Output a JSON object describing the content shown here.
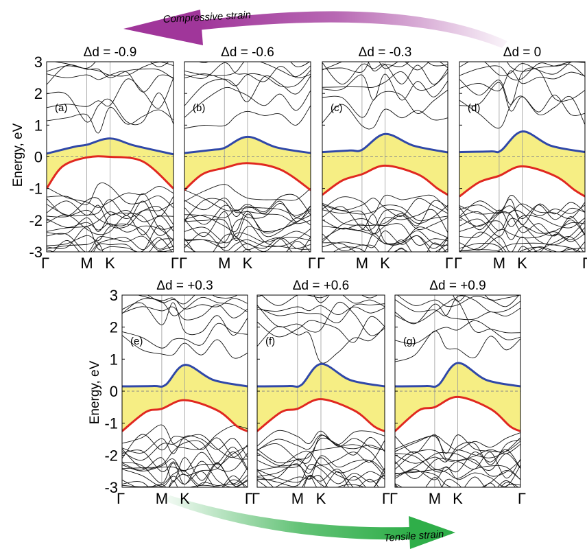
{
  "figure": {
    "arrows": {
      "top_label": "Compressive strain",
      "bottom_label": "Tensile strain",
      "top_color": "#a0369a",
      "bottom_color": "#2fae49"
    },
    "colors": {
      "gap_fill": "#f6ee84",
      "conduction_edge": "#3048a8",
      "valence_edge": "#e02820",
      "bands": "#111111",
      "fermi_line": "#888888"
    }
  },
  "chart_data": [
    {
      "type": "line",
      "panel": "(a)",
      "title": "Δd = -0.9",
      "ylabel": "Energy, eV",
      "ylim": [
        -3,
        3
      ],
      "yticks": [
        3,
        2,
        1,
        0,
        -1,
        -2,
        -3
      ],
      "xticks": [
        "Γ",
        "M",
        "K",
        "Γ"
      ],
      "k_positions": [
        0,
        1,
        1.58,
        3.16
      ],
      "conduction_edge": [
        [
          0,
          0.1
        ],
        [
          0.7,
          0.32
        ],
        [
          1.0,
          0.38
        ],
        [
          1.58,
          0.58
        ],
        [
          2.2,
          0.35
        ],
        [
          3.16,
          0.08
        ]
      ],
      "valence_edge": [
        [
          0,
          -1.0
        ],
        [
          0.4,
          -0.3
        ],
        [
          1.0,
          -0.02
        ],
        [
          1.58,
          0.0
        ],
        [
          2.4,
          -0.15
        ],
        [
          3.16,
          -1.0
        ]
      ]
    },
    {
      "type": "line",
      "panel": "(b)",
      "title": "Δd = -0.6",
      "ylabel": "",
      "ylim": [
        -3,
        3
      ],
      "yticks": [
        3,
        2,
        1,
        0,
        -1,
        -2,
        -3
      ],
      "xticks": [
        "Γ",
        "M",
        "K",
        "Γ"
      ],
      "k_positions": [
        0,
        1,
        1.58,
        3.16
      ],
      "conduction_edge": [
        [
          0,
          0.12
        ],
        [
          0.7,
          0.22
        ],
        [
          1.0,
          0.28
        ],
        [
          1.58,
          0.63
        ],
        [
          2.3,
          0.3
        ],
        [
          3.16,
          0.12
        ]
      ],
      "valence_edge": [
        [
          0,
          -1.05
        ],
        [
          0.45,
          -0.55
        ],
        [
          1.0,
          -0.35
        ],
        [
          1.58,
          -0.2
        ],
        [
          2.4,
          -0.4
        ],
        [
          3.16,
          -1.05
        ]
      ]
    },
    {
      "type": "line",
      "panel": "(c)",
      "title": "Δd = -0.3",
      "ylabel": "",
      "ylim": [
        -3,
        3
      ],
      "yticks": [
        3,
        2,
        1,
        0,
        -1,
        -2,
        -3
      ],
      "xticks": [
        "Γ",
        "M",
        "K",
        "Γ"
      ],
      "k_positions": [
        0,
        1,
        1.58,
        3.16
      ],
      "conduction_edge": [
        [
          0,
          0.15
        ],
        [
          0.7,
          0.2
        ],
        [
          1.0,
          0.22
        ],
        [
          1.58,
          0.72
        ],
        [
          2.3,
          0.35
        ],
        [
          3.16,
          0.14
        ]
      ],
      "valence_edge": [
        [
          0,
          -1.2
        ],
        [
          0.5,
          -0.75
        ],
        [
          1.0,
          -0.55
        ],
        [
          1.58,
          -0.28
        ],
        [
          2.4,
          -0.55
        ],
        [
          2.9,
          -1.0
        ],
        [
          3.16,
          -1.2
        ]
      ]
    },
    {
      "type": "line",
      "panel": "(d)",
      "title": "Δd = 0",
      "ylabel": "",
      "ylim": [
        -3,
        3
      ],
      "yticks": [
        3,
        2,
        1,
        0,
        -1,
        -2,
        -3
      ],
      "xticks": [
        "Γ",
        "M",
        "K",
        "Γ"
      ],
      "k_positions": [
        0,
        1,
        1.58,
        3.16
      ],
      "conduction_edge": [
        [
          0,
          0.15
        ],
        [
          0.8,
          0.17
        ],
        [
          1.05,
          0.2
        ],
        [
          1.58,
          0.8
        ],
        [
          2.3,
          0.35
        ],
        [
          3.16,
          0.15
        ]
      ],
      "valence_edge": [
        [
          0,
          -1.25
        ],
        [
          0.5,
          -0.8
        ],
        [
          1.0,
          -0.6
        ],
        [
          1.58,
          -0.3
        ],
        [
          2.4,
          -0.6
        ],
        [
          2.9,
          -1.05
        ],
        [
          3.16,
          -1.25
        ]
      ]
    },
    {
      "type": "line",
      "panel": "(e)",
      "title": "Δd = +0.3",
      "ylabel": "Energy, eV",
      "ylim": [
        -3,
        3
      ],
      "yticks": [
        3,
        2,
        1,
        0,
        -1,
        -2,
        -3
      ],
      "xticks": [
        "Γ",
        "M",
        "K",
        "Γ"
      ],
      "k_positions": [
        0,
        1,
        1.58,
        3.16
      ],
      "conduction_edge": [
        [
          0,
          0.15
        ],
        [
          0.8,
          0.16
        ],
        [
          1.1,
          0.2
        ],
        [
          1.58,
          0.82
        ],
        [
          2.3,
          0.35
        ],
        [
          3.16,
          0.15
        ]
      ],
      "valence_edge": [
        [
          0,
          -1.25
        ],
        [
          0.6,
          -0.65
        ],
        [
          1.0,
          -0.55
        ],
        [
          1.58,
          -0.28
        ],
        [
          2.4,
          -0.6
        ],
        [
          2.9,
          -1.1
        ],
        [
          3.16,
          -1.25
        ]
      ]
    },
    {
      "type": "line",
      "panel": "(f)",
      "title": "Δd = +0.6",
      "ylabel": "",
      "ylim": [
        -3,
        3
      ],
      "yticks": [
        3,
        2,
        1,
        0,
        -1,
        -2,
        -3
      ],
      "xticks": [
        "Γ",
        "M",
        "K",
        "Γ"
      ],
      "k_positions": [
        0,
        1,
        1.58,
        3.16
      ],
      "conduction_edge": [
        [
          0,
          0.15
        ],
        [
          0.8,
          0.16
        ],
        [
          1.1,
          0.2
        ],
        [
          1.58,
          0.85
        ],
        [
          2.3,
          0.35
        ],
        [
          3.16,
          0.15
        ]
      ],
      "valence_edge": [
        [
          0,
          -1.25
        ],
        [
          0.6,
          -0.65
        ],
        [
          1.0,
          -0.55
        ],
        [
          1.58,
          -0.25
        ],
        [
          2.4,
          -0.6
        ],
        [
          2.9,
          -1.1
        ],
        [
          3.16,
          -1.25
        ]
      ]
    },
    {
      "type": "line",
      "panel": "(g)",
      "title": "Δd = +0.9",
      "ylabel": "",
      "ylim": [
        -3,
        3
      ],
      "yticks": [
        3,
        2,
        1,
        0,
        -1,
        -2,
        -3
      ],
      "xticks": [
        "Γ",
        "M",
        "K",
        "Γ"
      ],
      "k_positions": [
        0,
        1,
        1.58,
        3.16
      ],
      "conduction_edge": [
        [
          0,
          0.15
        ],
        [
          0.8,
          0.16
        ],
        [
          1.1,
          0.2
        ],
        [
          1.58,
          0.88
        ],
        [
          2.3,
          0.35
        ],
        [
          3.16,
          0.15
        ]
      ],
      "valence_edge": [
        [
          0,
          -1.25
        ],
        [
          0.6,
          -0.6
        ],
        [
          1.0,
          -0.5
        ],
        [
          1.58,
          -0.18
        ],
        [
          2.4,
          -0.55
        ],
        [
          2.9,
          -1.1
        ],
        [
          3.16,
          -1.25
        ]
      ]
    }
  ]
}
